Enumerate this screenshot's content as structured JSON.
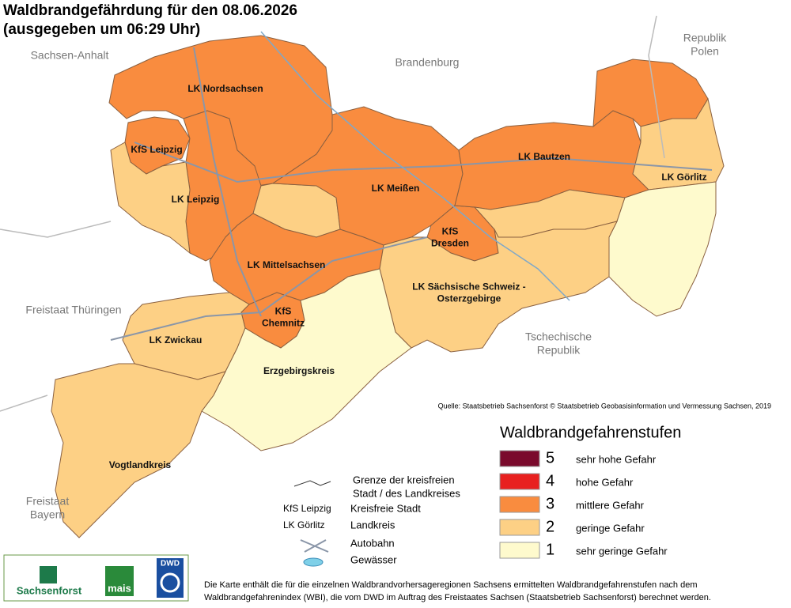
{
  "title": [
    "Waldbrandgefährdung  für den  08.06.2026",
    "(ausgegeben um 06:29 Uhr)"
  ],
  "neighbors": [
    [
      "Sachsen-Anhalt"
    ],
    [
      "Brandenburg"
    ],
    [
      "Republik",
      "Polen"
    ],
    [
      "Freistaat Thüringen"
    ],
    [
      "Tschechische",
      "Republik"
    ],
    [
      "Freistaat",
      "Bayern"
    ]
  ],
  "zones": [
    {
      "level": 3
    },
    {
      "level": 3
    },
    {
      "level": 3
    },
    {
      "level": 2
    },
    {
      "level": 2
    },
    {
      "level": 3
    },
    {
      "level": 3
    },
    {
      "level": 3
    },
    {
      "level": 3
    },
    {
      "level": 2
    },
    {
      "level": 3
    },
    {
      "level": 2
    },
    {
      "level": 1
    },
    {
      "level": 2
    },
    {
      "level": 3
    },
    {
      "level": 2
    },
    {
      "level": 1
    },
    {
      "level": 2
    }
  ],
  "districts": [
    [
      "LK Nordsachsen"
    ],
    [
      "KfS Leipzig"
    ],
    [
      "LK Leipzig"
    ],
    [
      "LK Meißen"
    ],
    [
      "LK Bautzen"
    ],
    [
      "LK Görlitz"
    ],
    [
      "KfS",
      "Dresden"
    ],
    [
      "LK Mittelsachsen"
    ],
    [
      "KfS",
      "Chemnitz"
    ],
    [
      "LK Sächsische Schweiz -",
      "Osterzgebirge"
    ],
    [
      "LK Zwickau"
    ],
    [
      "Erzgebirgskreis"
    ],
    [
      "Vogtlandkreis"
    ]
  ],
  "source": "Quelle: Staatsbetrieb Sachsenforst  © Staatsbetrieb Geobasisinformation und Vermessung Sachsen, 2019",
  "legend": {
    "title": "Waldbrandgefahrenstufen",
    "levels": [
      {
        "level": 5,
        "label": "sehr hohe Gefahr",
        "color": "#7a0a2c"
      },
      {
        "level": 4,
        "label": "hohe Gefahr",
        "color": "#e8201f"
      },
      {
        "level": 3,
        "label": "mittlere Gefahr",
        "color": "#f98c3f"
      },
      {
        "level": 2,
        "label": "geringe Gefahr",
        "color": "#fdd085"
      },
      {
        "level": 1,
        "label": "sehr geringe Gefahr",
        "color": "#fefacd"
      }
    ]
  },
  "key": {
    "border": [
      "Grenze der kreisfreien",
      "Stadt / des Landkreises"
    ],
    "city_symbol": "KfS Leipzig",
    "city": "Kreisfreie Stadt",
    "district_symbol": "LK Görlitz",
    "district": "Landkreis",
    "motorway": "Autobahn",
    "water": "Gewässer"
  },
  "logos": [
    "Sachsenforst",
    "mais",
    "DWD"
  ],
  "footnote": [
    "Die Karte enthält die für die einzelnen Waldbrandvorhersageregionen Sachsens ermittelten Waldbrandgefahrenstufen nach dem",
    "Waldbrandgefahrenindex (WBI), die vom DWD im Auftrag des Freistaates Sachsen (Staatsbetrieb Sachsenforst) berechnet werden."
  ]
}
